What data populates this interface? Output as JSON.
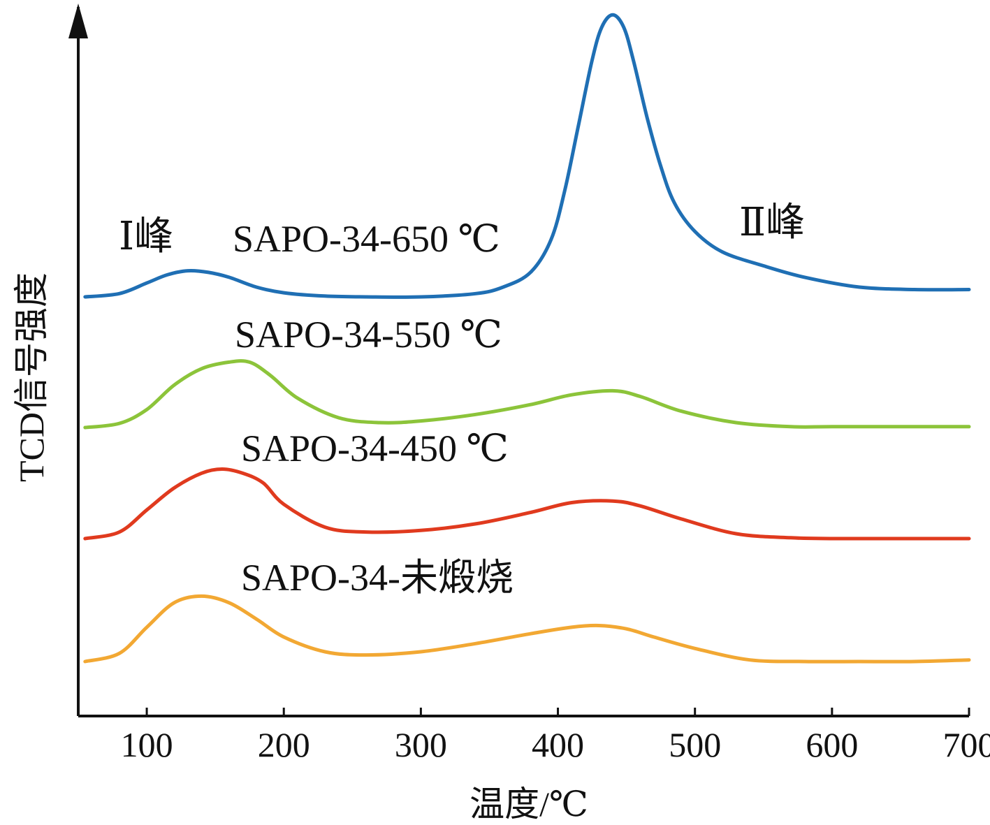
{
  "chart_data": {
    "type": "line",
    "title": "",
    "xlabel": "温度/℃",
    "ylabel": "TCD信号强度",
    "xlim": [
      50,
      700
    ],
    "x_ticks": [
      100,
      200,
      300,
      400,
      500,
      600,
      700
    ],
    "y_ticks_shown": false,
    "grid": false,
    "annotations": [
      {
        "id": "peak1",
        "text": "Ⅰ峰",
        "x": 120
      },
      {
        "id": "peak2",
        "text": "Ⅱ峰",
        "x": 570
      }
    ],
    "series": [
      {
        "name": "SAPO-34-650 ℃",
        "color": "#1f6fb4",
        "x": [
          55,
          80,
          100,
          115,
          130,
          145,
          160,
          180,
          200,
          230,
          260,
          300,
          340,
          360,
          380,
          395,
          405,
          415,
          425,
          432,
          440,
          448,
          455,
          465,
          475,
          485,
          500,
          520,
          550,
          580,
          620,
          660,
          700
        ],
        "y": [
          0.0,
          0.04,
          0.17,
          0.27,
          0.32,
          0.3,
          0.24,
          0.12,
          0.05,
          0.01,
          0.0,
          0.0,
          0.04,
          0.12,
          0.3,
          0.7,
          1.3,
          2.1,
          2.9,
          3.3,
          3.45,
          3.3,
          2.9,
          2.2,
          1.6,
          1.15,
          0.8,
          0.55,
          0.38,
          0.24,
          0.12,
          0.09,
          0.09
        ]
      },
      {
        "name": "SAPO-34-550 ℃",
        "color": "#8cc43a",
        "x": [
          55,
          80,
          100,
          120,
          140,
          160,
          175,
          190,
          210,
          240,
          270,
          300,
          340,
          380,
          410,
          440,
          460,
          490,
          530,
          570,
          600,
          650,
          700
        ],
        "y": [
          0.0,
          0.05,
          0.22,
          0.52,
          0.72,
          0.8,
          0.8,
          0.64,
          0.36,
          0.12,
          0.06,
          0.08,
          0.16,
          0.28,
          0.4,
          0.45,
          0.38,
          0.2,
          0.06,
          0.01,
          0.01,
          0.01,
          0.01
        ]
      },
      {
        "name": "SAPO-34-450 ℃",
        "color": "#e03a1e",
        "x": [
          55,
          80,
          100,
          120,
          140,
          155,
          170,
          185,
          200,
          230,
          260,
          300,
          340,
          380,
          410,
          440,
          460,
          490,
          530,
          570,
          600,
          650,
          700
        ],
        "y": [
          0.0,
          0.08,
          0.35,
          0.62,
          0.8,
          0.85,
          0.8,
          0.68,
          0.42,
          0.14,
          0.08,
          0.1,
          0.18,
          0.32,
          0.44,
          0.46,
          0.4,
          0.24,
          0.06,
          0.01,
          0.0,
          0.0,
          0.0
        ]
      },
      {
        "name": "SAPO-34-未煅烧",
        "color": "#f2a833",
        "x": [
          55,
          80,
          100,
          120,
          140,
          160,
          180,
          200,
          230,
          260,
          300,
          340,
          380,
          410,
          430,
          450,
          470,
          500,
          540,
          580,
          620,
          660,
          700
        ],
        "y": [
          0.0,
          0.1,
          0.42,
          0.72,
          0.8,
          0.72,
          0.52,
          0.3,
          0.12,
          0.08,
          0.12,
          0.22,
          0.34,
          0.42,
          0.44,
          0.4,
          0.3,
          0.16,
          0.02,
          0.0,
          0.0,
          0.0,
          0.02
        ]
      }
    ]
  }
}
